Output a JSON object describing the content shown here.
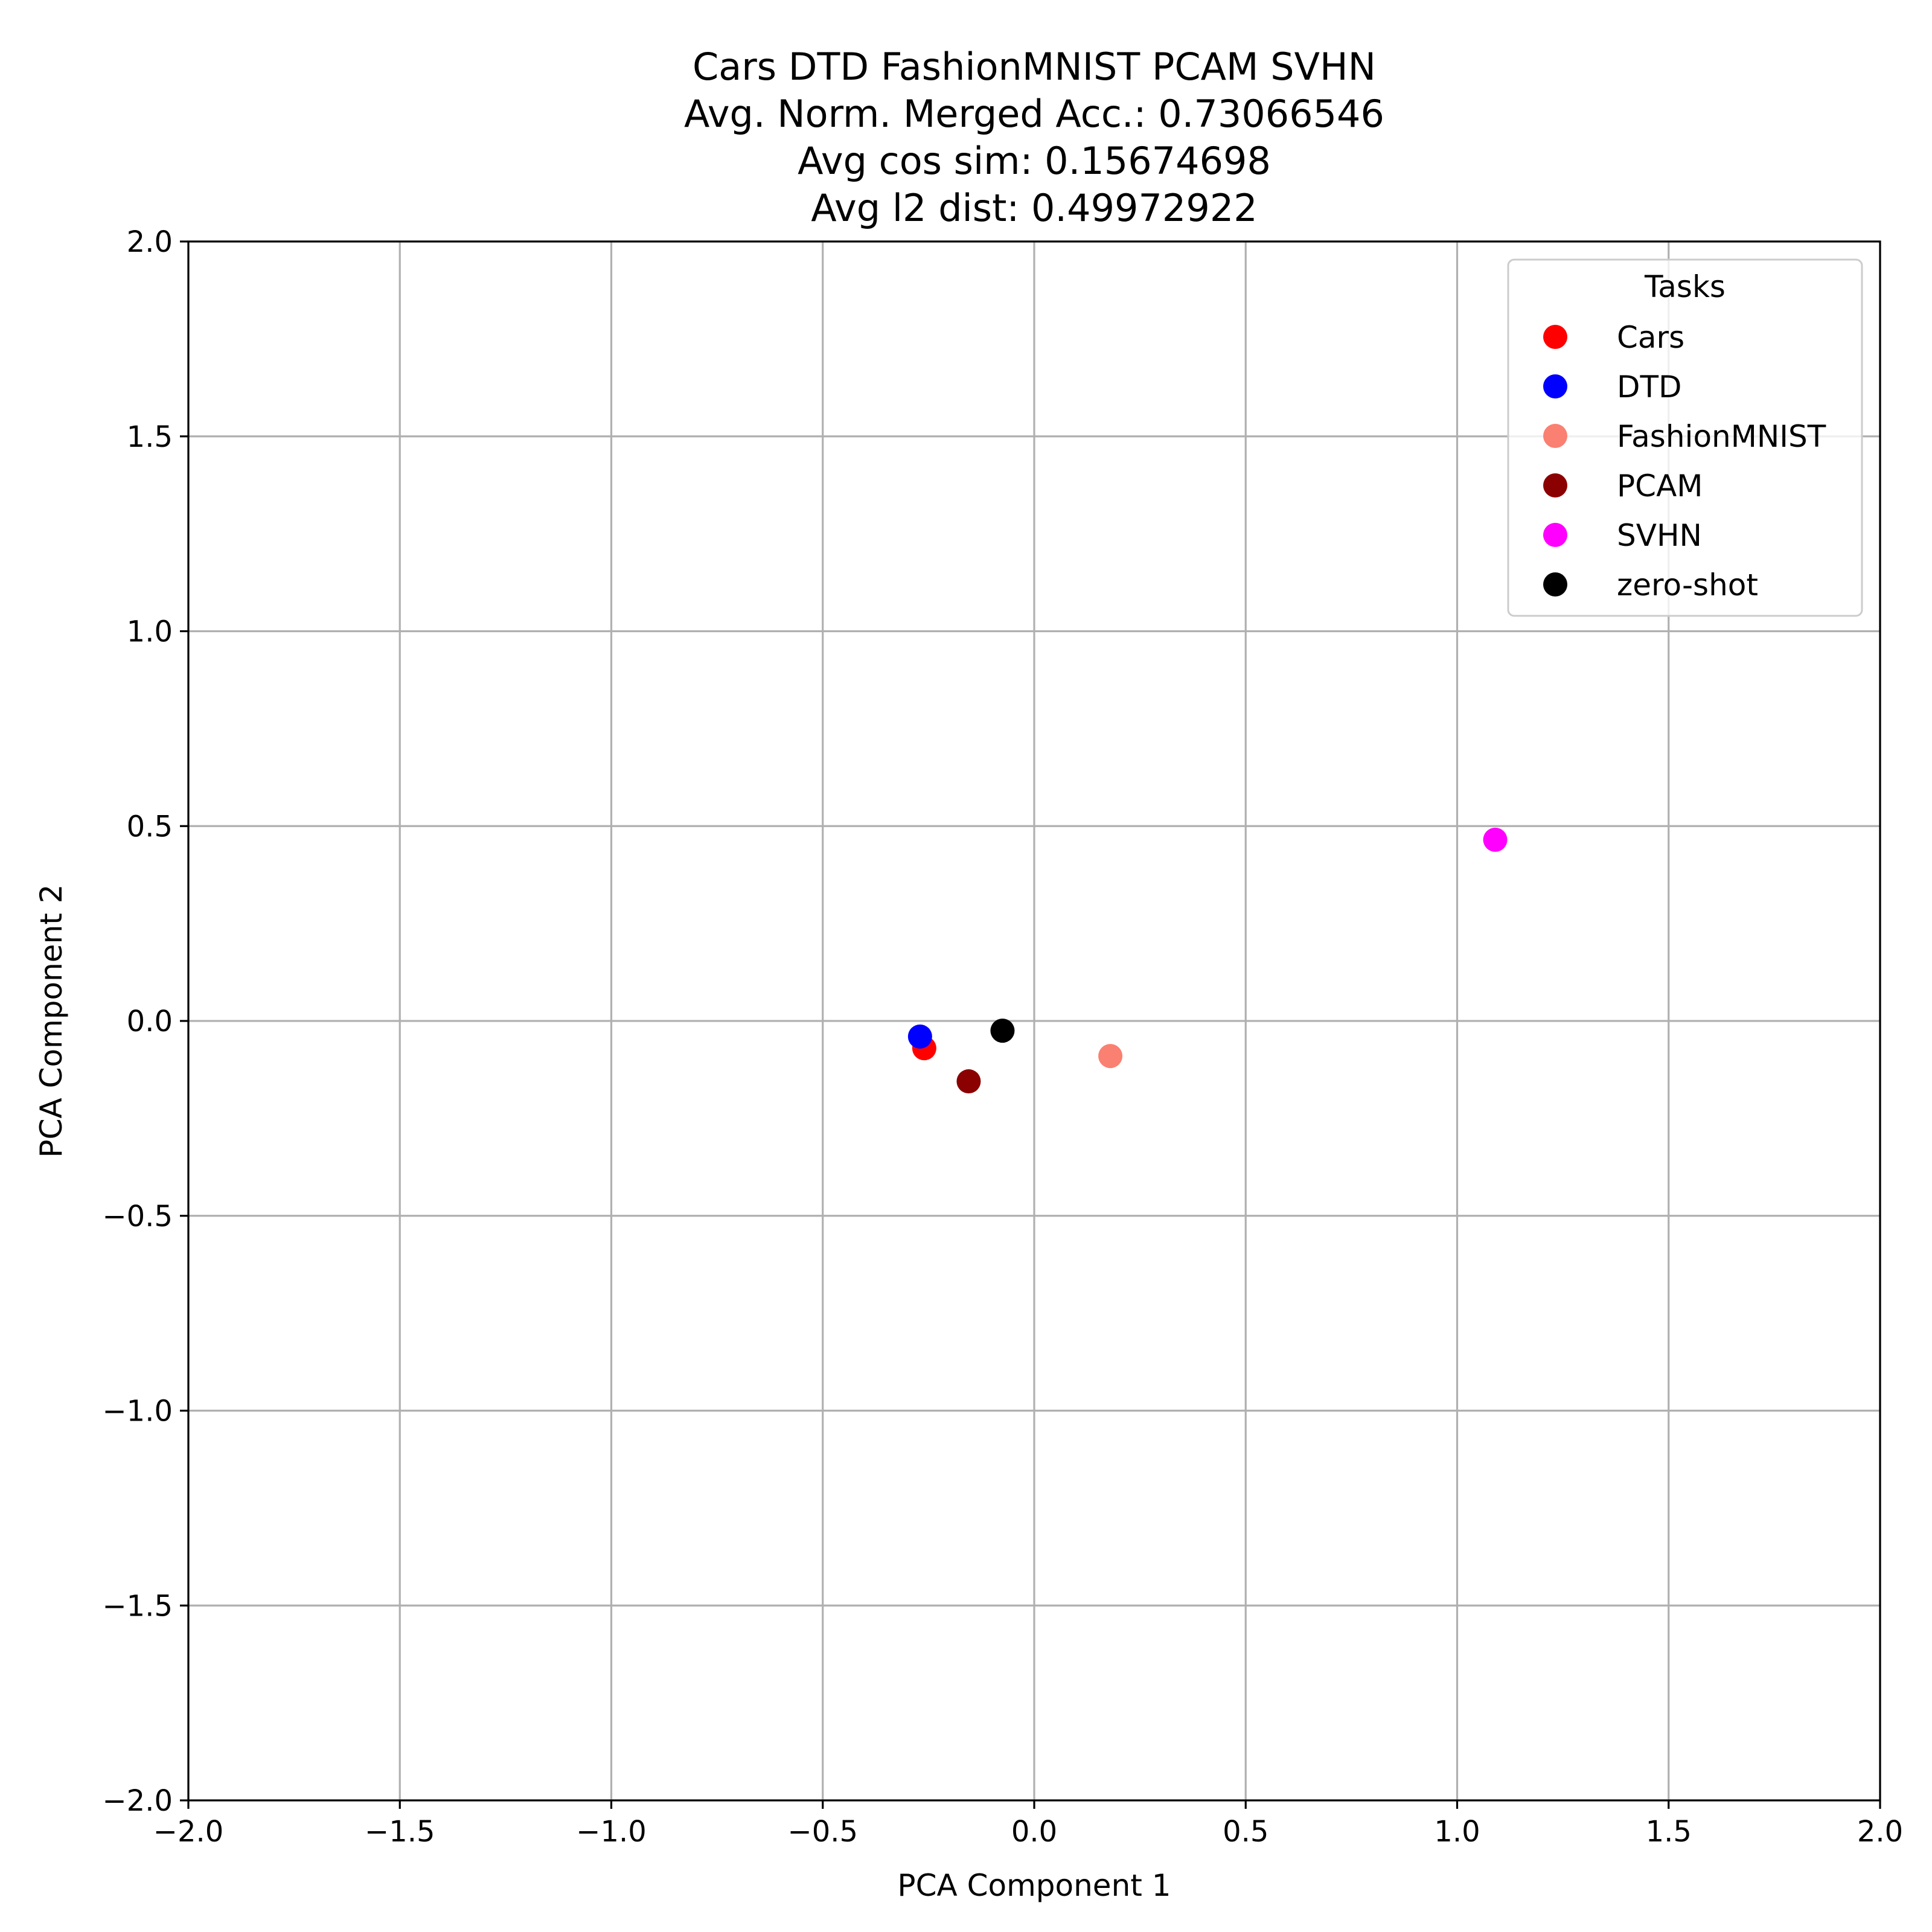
{
  "chart_data": {
    "type": "scatter",
    "title_lines": [
      "Cars DTD FashionMNIST PCAM SVHN",
      "Avg. Norm. Merged Acc.: 0.73066546",
      "Avg cos sim: 0.15674698",
      "Avg l2 dist: 0.49972922"
    ],
    "xlabel": "PCA Component 1",
    "ylabel": "PCA Component 2",
    "xlim": [
      -2.0,
      2.0
    ],
    "ylim": [
      -2.0,
      2.0
    ],
    "xticks": [
      -2.0,
      -1.5,
      -1.0,
      -0.5,
      0.0,
      0.5,
      1.0,
      1.5,
      2.0
    ],
    "yticks": [
      -2.0,
      -1.5,
      -1.0,
      -0.5,
      0.0,
      0.5,
      1.0,
      1.5,
      2.0
    ],
    "xtick_labels": [
      "−2.0",
      "−1.5",
      "−1.0",
      "−0.5",
      "0.0",
      "0.5",
      "1.0",
      "1.5",
      "2.0"
    ],
    "ytick_labels": [
      "−2.0",
      "−1.5",
      "−1.0",
      "−0.5",
      "0.0",
      "0.5",
      "1.0",
      "1.5",
      "2.0"
    ],
    "grid": true,
    "legend_title": "Tasks",
    "legend_position": "top-right",
    "series": [
      {
        "name": "Cars",
        "color": "#ff0000",
        "x": -0.26,
        "y": -0.07
      },
      {
        "name": "DTD",
        "color": "#0000ff",
        "x": -0.27,
        "y": -0.04
      },
      {
        "name": "FashionMNIST",
        "color": "#fa8072",
        "x": 0.18,
        "y": -0.09
      },
      {
        "name": "PCAM",
        "color": "#8b0000",
        "x": -0.155,
        "y": -0.155
      },
      {
        "name": "SVHN",
        "color": "#ff00ff",
        "x": 1.09,
        "y": 0.465
      },
      {
        "name": "zero-shot",
        "color": "#000000",
        "x": -0.075,
        "y": -0.025
      }
    ]
  }
}
